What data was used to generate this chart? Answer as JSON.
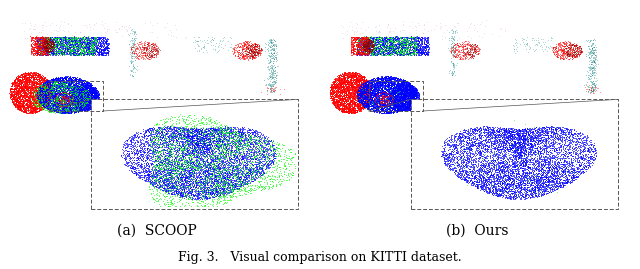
{
  "caption_a": "(a)  SCOOP",
  "caption_b": "(b)  Ours",
  "fig_caption": "Fig. 3.   Visual comparison on KITTI dataset.",
  "background_color": "#ffffff",
  "fig_width": 6.4,
  "fig_height": 2.69,
  "caption_fontsize": 10,
  "fig_caption_fontsize": 9,
  "font_family": "DejaVu Serif"
}
